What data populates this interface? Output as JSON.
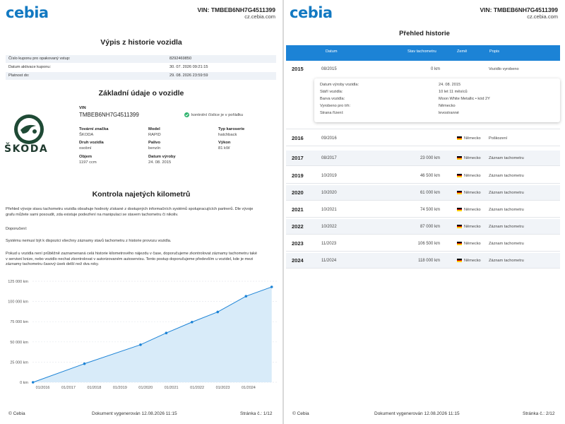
{
  "left": {
    "header": {
      "logo": "cebia",
      "vin": "VIN: TMBEB6NH7G4511399",
      "site": "cz.cebia.com"
    },
    "title": "Výpis z historie vozidla",
    "coupon": [
      {
        "label": "Číslo kuponu pro opakovaný vstup:",
        "value": "8292469850"
      },
      {
        "label": "Datum aktivace kuponu:",
        "value": "30. 07. 2026 09:21:15"
      },
      {
        "label": "Platnost do:",
        "value": "29. 08. 2026 23:59:59"
      }
    ],
    "basic_title": "Základní údaje o vozidle",
    "brand_logo": "ŠKODA",
    "vin_label": "VIN",
    "vin_value": "TMBEB6NH7G4511399",
    "vin_check": "kontrolní číslice je v pořádku",
    "specs": [
      {
        "label": "Tovární značka",
        "value": "ŠKODA"
      },
      {
        "label": "Model",
        "value": "RAPID"
      },
      {
        "label": "Typ karoserie",
        "value": "hatchback"
      },
      {
        "label": "Druh vozidla",
        "value": "osobní"
      },
      {
        "label": "Palivo",
        "value": "benzín"
      },
      {
        "label": "Výkon",
        "value": "81 kW"
      },
      {
        "label": "Objem",
        "value": "1197 ccm"
      },
      {
        "label": "Datum výroby",
        "value": "24. 08. 2015"
      }
    ],
    "km_title": "Kontrola najetých kilometrů",
    "para1a": "Přehled vývoje stavu tachometru vozidla obsahuje hodnoty získané z dostupných informačních systémů spolupracujících partnerů. Dle vývoje",
    "para1b": "grafu můžete sami posoudit, zda existuje podezření na manipulaci se stavem tachometru či nikoliv.",
    "para2": "Doporučení:",
    "para3": "Systému nemusí být k dispozici všechny záznamy stavů tachometru z historie provozu vozidla.",
    "para4a": "Pokud u vozidla není průběžně zaznamenaná celá historie kilometrového nájezdu v čase, doporučujeme zkontrolovat záznamy tachometru také",
    "para4b": "v servisní knize, nebo vozidlo nechat zkontrolovat v autorizovaném autoservisu. Tento postup doporučujeme především u vozidel, kde je mezi",
    "para4c": "záznamy tachometru časový úsek delší než dva roky.",
    "footer": {
      "left": "© Cebia",
      "center": "Dokument vygenerován 12.08.2026 11:15",
      "right": "Stránka č.: 1/12"
    }
  },
  "chart_data": {
    "type": "area",
    "x": [
      "01/2016",
      "01/2017",
      "01/2018",
      "01/2019",
      "01/2020",
      "01/2021",
      "01/2022",
      "01/2023",
      "01/2024"
    ],
    "y_ticks": [
      "125 000 km",
      "100 000 km",
      "75 000 km",
      "50 000 km",
      "25 000 km",
      "0 km"
    ],
    "ylim": [
      0,
      125000
    ],
    "xlim": [
      2015.6,
      2025.1
    ],
    "points": [
      {
        "x": 2015.62,
        "y": 0
      },
      {
        "x": 2017.62,
        "y": 23000
      },
      {
        "x": 2019.8,
        "y": 46500
      },
      {
        "x": 2020.8,
        "y": 61000
      },
      {
        "x": 2021.8,
        "y": 74500
      },
      {
        "x": 2022.8,
        "y": 87000
      },
      {
        "x": 2023.9,
        "y": 106500
      },
      {
        "x": 2024.9,
        "y": 118000
      }
    ],
    "color": "#1c83d6",
    "fill": "#d8ebf9"
  },
  "right": {
    "header": {
      "logo": "cebia",
      "vin": "VIN: TMBEB6NH7G4511399",
      "site": "cz.cebia.com"
    },
    "title": "Přehled historie",
    "columns": [
      "Datum",
      "Stav tachometru",
      "Země",
      "Popis"
    ],
    "rows": [
      {
        "year": "2015",
        "date": "08/2015",
        "km": "0 km",
        "country": "",
        "desc": "Vozidlo vyrobeno"
      },
      {
        "year": "2016",
        "date": "09/2016",
        "km": "",
        "country": "Německo",
        "desc": "Poškození"
      },
      {
        "year": "2017",
        "date": "08/2017",
        "km": "23 000 km",
        "country": "Německo",
        "desc": "Záznam tachometru"
      },
      {
        "year": "2019",
        "date": "10/2019",
        "km": "46 500 km",
        "country": "Německo",
        "desc": "Záznam tachometru"
      },
      {
        "year": "2020",
        "date": "10/2020",
        "km": "61 000 km",
        "country": "Německo",
        "desc": "Záznam tachometru"
      },
      {
        "year": "2021",
        "date": "10/2021",
        "km": "74 500 km",
        "country": "Německo",
        "desc": "Záznam tachometru"
      },
      {
        "year": "2022",
        "date": "10/2022",
        "km": "87 000 km",
        "country": "Německo",
        "desc": "Záznam tachometru"
      },
      {
        "year": "2023",
        "date": "11/2023",
        "km": "106 500 km",
        "country": "Německo",
        "desc": "Záznam tachometru"
      },
      {
        "year": "2024",
        "date": "11/2024",
        "km": "118 000 km",
        "country": "Německo",
        "desc": "Záznam tachometru"
      }
    ],
    "detail": [
      {
        "label": "Datum výroby vozidla:",
        "value": "24. 08. 2015"
      },
      {
        "label": "Stáří vozidla:",
        "value": "10 let 11 měsíců"
      },
      {
        "label": "Barva vozidla:",
        "value": "Moon White Metallic • kód 2Y"
      },
      {
        "label": "Vyrobeno pro trh:",
        "value": "Německo"
      },
      {
        "label": "Strana řízení:",
        "value": "levostranné"
      }
    ],
    "footer": {
      "left": "© Cebia",
      "center": "Dokument vygenerován 12.08.2026 11:15",
      "right": "Stránka č.: 2/12"
    }
  }
}
